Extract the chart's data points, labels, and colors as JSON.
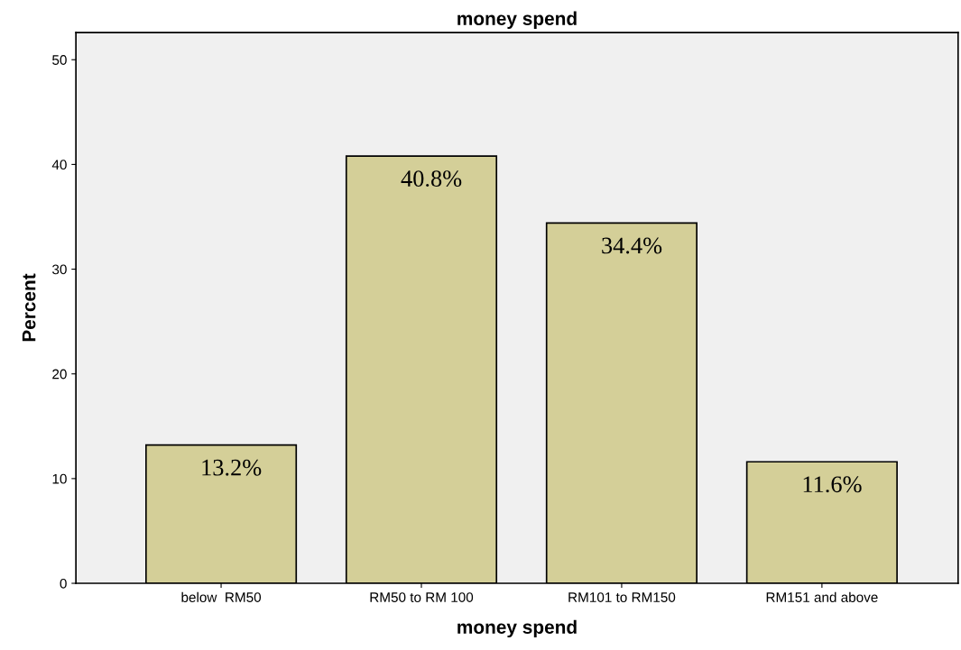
{
  "chart_data": {
    "type": "bar",
    "title": "money spend",
    "xlabel": "money spend",
    "ylabel": "Percent",
    "categories": [
      "below  RM50",
      "RM50 to RM 100",
      "RM101 to RM150",
      "RM151 and above"
    ],
    "values": [
      13.2,
      40.8,
      34.4,
      11.6
    ],
    "value_labels": [
      "13.2%",
      "40.8%",
      "34.4%",
      "11.6%"
    ],
    "color": "#d4cf98",
    "ylim": [
      0,
      52.6
    ],
    "yticks": [
      0,
      10,
      20,
      30,
      40,
      50
    ],
    "grid": false,
    "legend": false
  }
}
